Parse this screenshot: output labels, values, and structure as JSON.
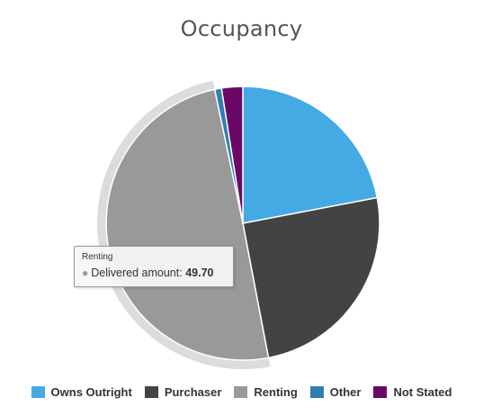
{
  "chart_data": {
    "type": "pie",
    "title": "Occupancy",
    "series_metric": "Delivered amount",
    "slices": [
      {
        "label": "Owns Outright",
        "value": 22.0,
        "color": "#44aae3"
      },
      {
        "label": "Purchaser",
        "value": 25.0,
        "color": "#434343"
      },
      {
        "label": "Renting",
        "value": 49.7,
        "color": "#999999"
      },
      {
        "label": "Other",
        "value": 0.8,
        "color": "#2f7fb0"
      },
      {
        "label": "Not Stated",
        "value": 2.5,
        "color": "#6a0767"
      }
    ],
    "legend_position": "bottom",
    "hovered_slice": "Renting"
  },
  "tooltip": {
    "title": "Renting",
    "series_label": "Delivered amount:",
    "value": "49.70"
  }
}
